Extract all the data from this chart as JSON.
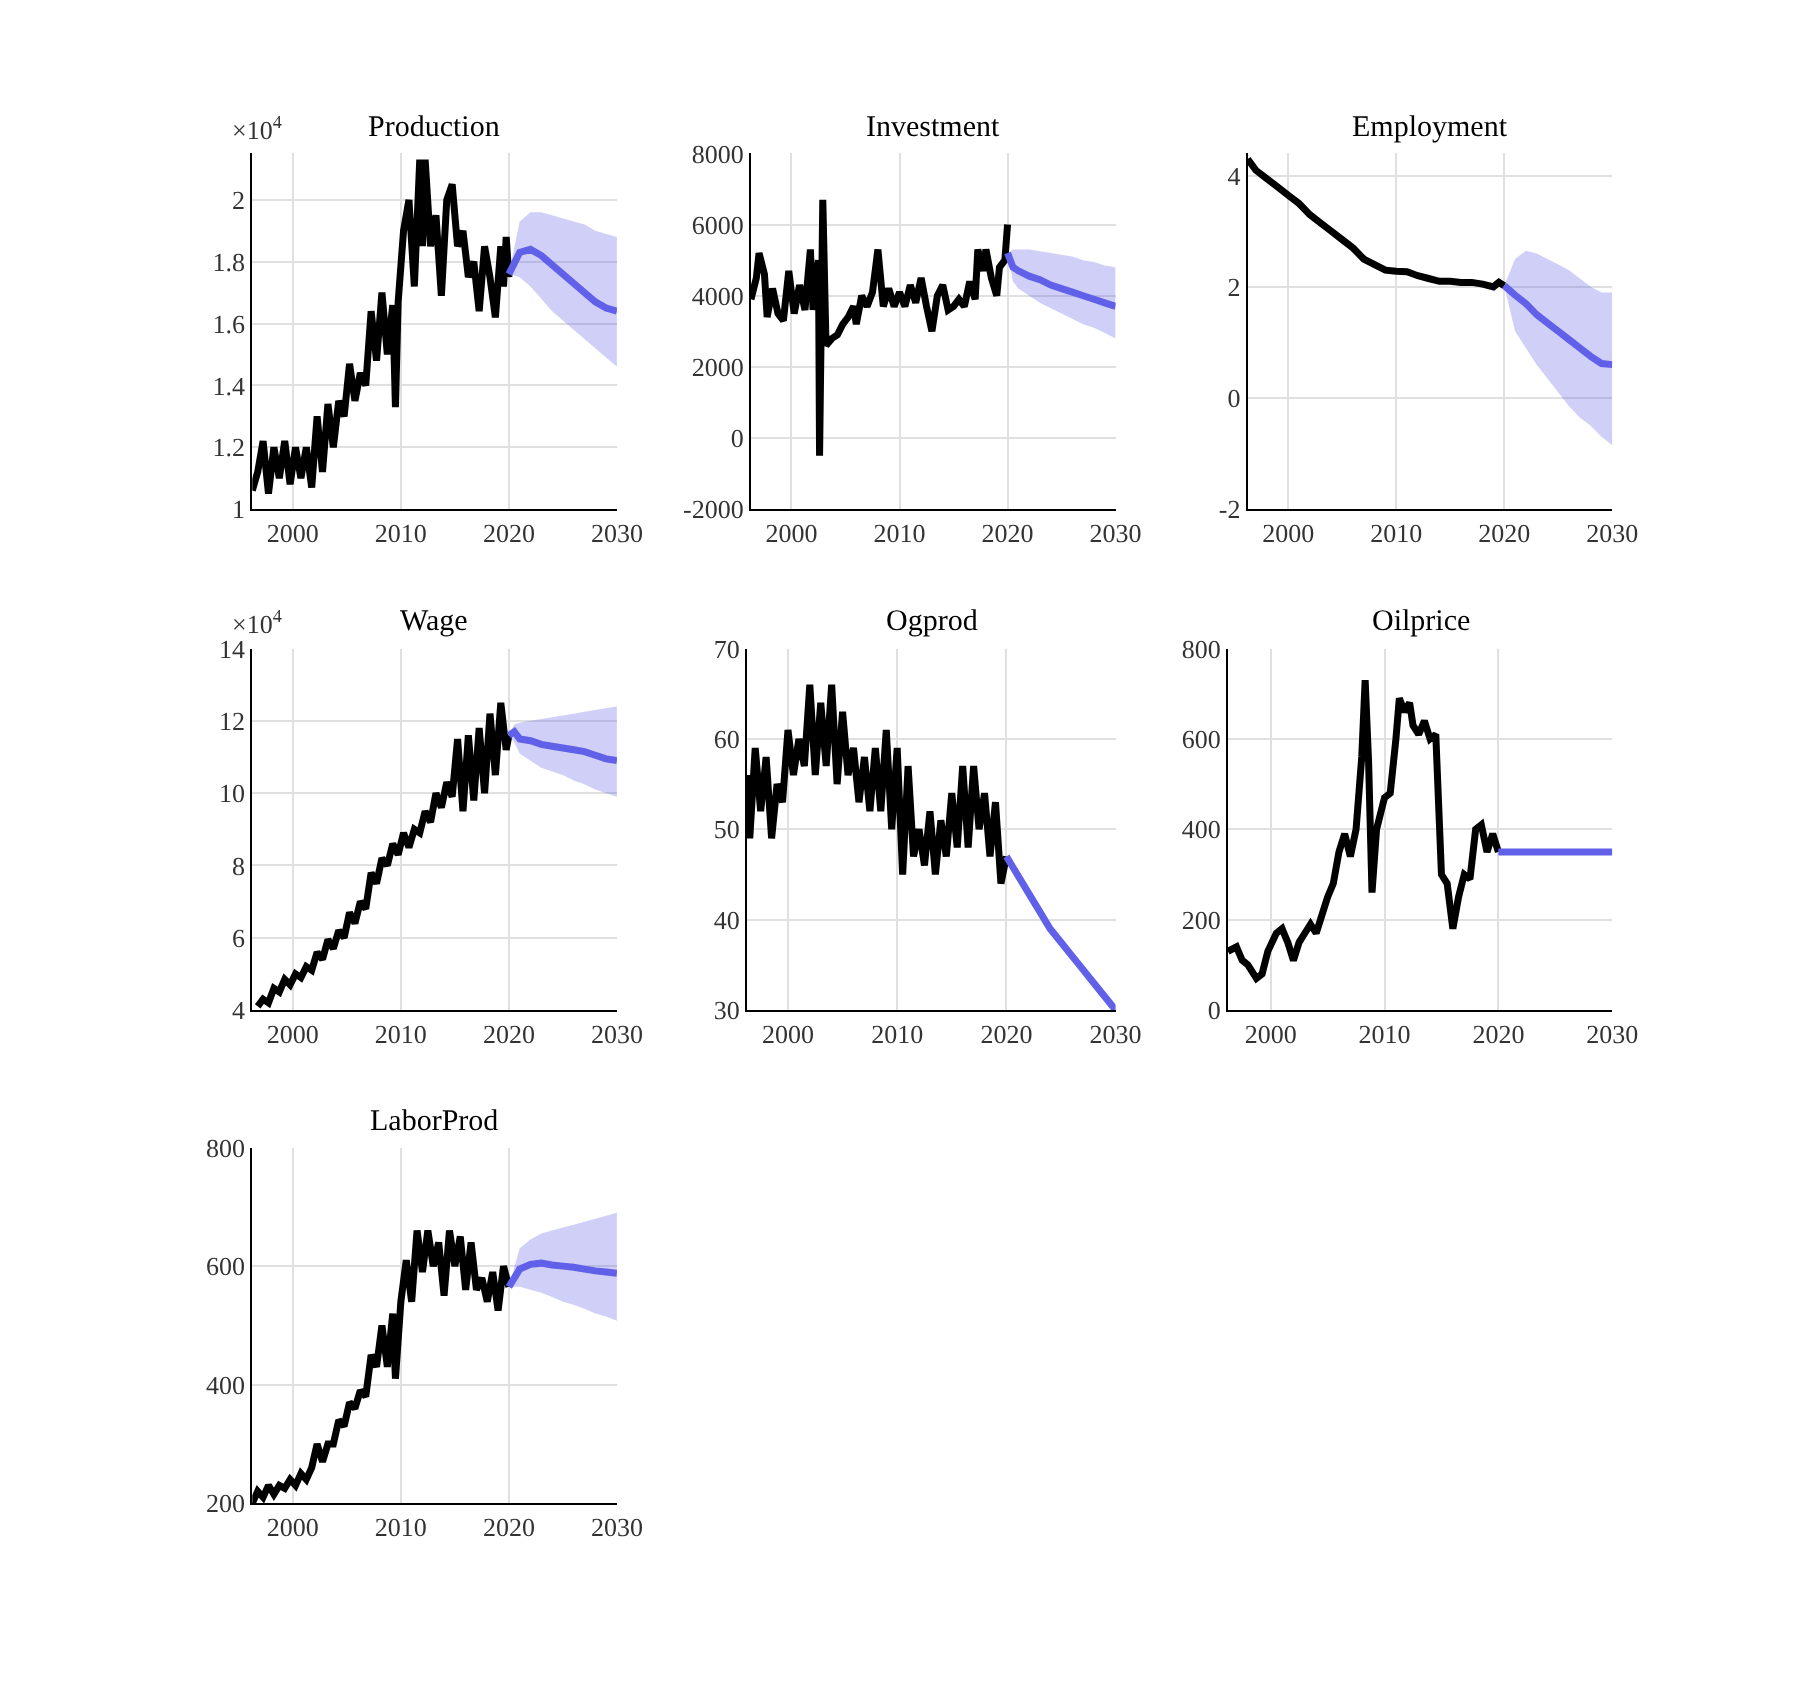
{
  "chart_data": [
    {
      "type": "line",
      "title": "Production",
      "annotations": [
        "×10$^{4}$"
      ],
      "xlim": [
        1996.25,
        2030
      ],
      "xticks": [
        2000,
        2010,
        2020,
        2030
      ],
      "ylim": [
        1,
        2.15
      ],
      "yticks": [
        1,
        1.2,
        1.4,
        1.6,
        1.8,
        2
      ],
      "grid": true,
      "series": [
        {
          "color": "#000000",
          "x": [
            1996.25,
            1996.75,
            1997.25,
            1997.75,
            1998.25,
            1998.75,
            1999.25,
            1999.75,
            2000.25,
            2000.75,
            2001.25,
            2001.75,
            2002.25,
            2002.75,
            2003.25,
            2003.75,
            2004.25,
            2004.75,
            2005.25,
            2005.75,
            2006.25,
            2006.75,
            2007.25,
            2007.75,
            2008.25,
            2008.75,
            2009.25,
            2009.5,
            2009.75,
            2010.25,
            2010.75,
            2011.25,
            2011.75,
            2012.0,
            2012.25,
            2012.75,
            2013.25,
            2013.75,
            2014.25,
            2014.75,
            2015.25,
            2015.75,
            2016.25,
            2016.75,
            2017.25,
            2017.75,
            2018.25,
            2018.75,
            2019.25,
            2019.5,
            2019.75,
            2020.0
          ],
          "values": [
            1.06,
            1.12,
            1.22,
            1.05,
            1.2,
            1.1,
            1.22,
            1.08,
            1.2,
            1.1,
            1.2,
            1.07,
            1.3,
            1.12,
            1.34,
            1.2,
            1.35,
            1.3,
            1.47,
            1.35,
            1.44,
            1.4,
            1.64,
            1.48,
            1.7,
            1.5,
            1.66,
            1.33,
            1.67,
            1.9,
            2.0,
            1.72,
            2.13,
            1.85,
            2.13,
            1.85,
            1.95,
            1.69,
            2.0,
            2.05,
            1.85,
            1.9,
            1.75,
            1.8,
            1.64,
            1.85,
            1.75,
            1.62,
            1.85,
            1.72,
            1.88,
            1.75
          ]
        },
        {
          "color": "#6060e8",
          "x": [
            2020,
            2021,
            2022,
            2023,
            2024,
            2025,
            2026,
            2027,
            2028,
            2029,
            2030
          ],
          "values": [
            1.76,
            1.83,
            1.84,
            1.82,
            1.79,
            1.76,
            1.73,
            1.7,
            1.67,
            1.65,
            1.64
          ],
          "upper": [
            1.76,
            1.93,
            1.96,
            1.96,
            1.95,
            1.94,
            1.93,
            1.92,
            1.9,
            1.89,
            1.88
          ],
          "lower": [
            1.76,
            1.75,
            1.72,
            1.68,
            1.64,
            1.61,
            1.58,
            1.55,
            1.52,
            1.49,
            1.46
          ]
        }
      ]
    },
    {
      "type": "line",
      "title": "Investment",
      "xlim": [
        1996.25,
        2030
      ],
      "xticks": [
        2000,
        2010,
        2020,
        2030
      ],
      "ylim": [
        -2000,
        8000
      ],
      "yticks": [
        -2000,
        0,
        2000,
        4000,
        6000,
        8000
      ],
      "grid": true,
      "series": [
        {
          "color": "#000000",
          "x": [
            1996.25,
            1996.75,
            1997.0,
            1997.5,
            1997.75,
            1998.25,
            1998.75,
            1999.25,
            1999.75,
            2000.25,
            2000.75,
            2001.25,
            2001.75,
            2002.0,
            2002.25,
            2002.5,
            2002.6,
            2002.9,
            2003.2,
            2003.75,
            2004.25,
            2004.75,
            2005.25,
            2005.75,
            2006.0,
            2006.5,
            2007.0,
            2007.5,
            2008.0,
            2008.5,
            2009.0,
            2009.5,
            2010.0,
            2010.5,
            2011.0,
            2011.5,
            2012.0,
            2012.5,
            2013.0,
            2013.5,
            2014.0,
            2014.5,
            2015.0,
            2015.5,
            2016.0,
            2016.5,
            2017.0,
            2017.25,
            2017.75,
            2018.0,
            2018.5,
            2019.0,
            2019.25,
            2019.75,
            2020.0
          ],
          "values": [
            3900,
            4500,
            5200,
            4600,
            3400,
            4200,
            3500,
            3300,
            4700,
            3500,
            4300,
            3600,
            5300,
            3600,
            4500,
            5000,
            -500,
            6700,
            2600,
            2800,
            2900,
            3200,
            3400,
            3700,
            3200,
            4000,
            3700,
            4100,
            5300,
            3700,
            4200,
            3700,
            4100,
            3700,
            4300,
            3800,
            4500,
            3700,
            3000,
            4000,
            4300,
            3600,
            3700,
            3900,
            3700,
            4400,
            3900,
            5300,
            4700,
            5300,
            4500,
            4000,
            4800,
            5000,
            6000
          ]
        },
        {
          "color": "#6060e8",
          "x": [
            2020,
            2020.5,
            2021,
            2022,
            2023,
            2024,
            2025,
            2026,
            2027,
            2028,
            2029,
            2030
          ],
          "values": [
            5200,
            4800,
            4700,
            4550,
            4450,
            4300,
            4200,
            4100,
            4000,
            3900,
            3800,
            3700
          ],
          "upper": [
            5200,
            5300,
            5300,
            5300,
            5250,
            5200,
            5150,
            5100,
            5000,
            4950,
            4850,
            4800
          ],
          "lower": [
            5200,
            4400,
            4200,
            4000,
            3800,
            3650,
            3500,
            3350,
            3200,
            3100,
            2950,
            2800
          ]
        }
      ]
    },
    {
      "type": "line",
      "title": "Employment",
      "xlim": [
        1996.25,
        2030
      ],
      "xticks": [
        2000,
        2010,
        2020,
        2030
      ],
      "ylim": [
        -2,
        4.4
      ],
      "yticks": [
        -2,
        0,
        2,
        4
      ],
      "grid": true,
      "series": [
        {
          "color": "#000000",
          "x": [
            1996.25,
            1997,
            1998,
            1999,
            2000,
            2001,
            2002,
            2003,
            2004,
            2005,
            2006,
            2007,
            2008,
            2009,
            2010,
            2011,
            2012,
            2013,
            2014,
            2015,
            2016,
            2017,
            2018,
            2019,
            2019.5,
            2020
          ],
          "values": [
            4.3,
            4.1,
            3.95,
            3.8,
            3.65,
            3.5,
            3.3,
            3.15,
            3.0,
            2.85,
            2.7,
            2.5,
            2.4,
            2.3,
            2.28,
            2.27,
            2.2,
            2.15,
            2.1,
            2.1,
            2.08,
            2.08,
            2.05,
            2.0,
            2.08,
            2.02
          ]
        },
        {
          "color": "#6060e8",
          "x": [
            2020,
            2021,
            2022,
            2023,
            2024,
            2025,
            2026,
            2027,
            2028,
            2029,
            2030
          ],
          "values": [
            2.02,
            1.85,
            1.7,
            1.5,
            1.35,
            1.2,
            1.05,
            0.9,
            0.75,
            0.62,
            0.6
          ],
          "upper": [
            2.02,
            2.5,
            2.65,
            2.6,
            2.5,
            2.4,
            2.3,
            2.15,
            2.0,
            1.9,
            1.9
          ],
          "lower": [
            2.02,
            1.2,
            0.9,
            0.6,
            0.35,
            0.1,
            -0.15,
            -0.35,
            -0.5,
            -0.7,
            -0.85
          ]
        }
      ]
    },
    {
      "type": "line",
      "title": "Wage",
      "annotations": [
        "×10$^{4}$"
      ],
      "xlim": [
        1996.25,
        2030
      ],
      "xticks": [
        2000,
        2010,
        2020,
        2030
      ],
      "ylim": [
        4,
        14
      ],
      "yticks": [
        4,
        6,
        8,
        10,
        12,
        14
      ],
      "grid": true,
      "series": [
        {
          "color": "#000000",
          "x": [
            1996.75,
            1997.25,
            1997.75,
            1998.25,
            1998.75,
            1999.25,
            1999.75,
            2000.25,
            2000.75,
            2001.25,
            2001.75,
            2002.25,
            2002.75,
            2003.25,
            2003.75,
            2004.25,
            2004.75,
            2005.25,
            2005.75,
            2006.25,
            2006.75,
            2007.25,
            2007.75,
            2008.25,
            2008.75,
            2009.25,
            2009.75,
            2010.25,
            2010.75,
            2011.25,
            2011.75,
            2012.25,
            2012.75,
            2013.25,
            2013.75,
            2014.25,
            2014.75,
            2015.25,
            2015.75,
            2016.25,
            2016.75,
            2017.25,
            2017.75,
            2018.25,
            2018.75,
            2019.25,
            2019.75,
            2020
          ],
          "values": [
            4.1,
            4.3,
            4.2,
            4.6,
            4.5,
            4.85,
            4.7,
            5.0,
            4.9,
            5.2,
            5.1,
            5.6,
            5.4,
            5.95,
            5.7,
            6.2,
            6.0,
            6.7,
            6.4,
            7.0,
            6.8,
            7.8,
            7.5,
            8.2,
            8.0,
            8.6,
            8.3,
            8.9,
            8.5,
            9.0,
            8.9,
            9.5,
            9.2,
            10.0,
            9.6,
            10.3,
            9.9,
            11.5,
            9.5,
            11.6,
            9.8,
            11.8,
            10.0,
            12.2,
            10.5,
            12.5,
            11.2,
            11.6
          ]
        },
        {
          "color": "#6060e8",
          "x": [
            2020,
            2020.5,
            2021,
            2022,
            2023,
            2024,
            2025,
            2026,
            2027,
            2028,
            2029,
            2030
          ],
          "values": [
            11.6,
            11.7,
            11.5,
            11.45,
            11.35,
            11.3,
            11.25,
            11.2,
            11.15,
            11.05,
            10.95,
            10.9
          ],
          "upper": [
            11.6,
            11.9,
            11.95,
            12.0,
            12.05,
            12.1,
            12.15,
            12.2,
            12.25,
            12.3,
            12.35,
            12.4
          ],
          "lower": [
            11.6,
            11.4,
            11.1,
            10.9,
            10.7,
            10.6,
            10.5,
            10.35,
            10.25,
            10.1,
            10.0,
            9.9
          ]
        }
      ]
    },
    {
      "type": "line",
      "title": "Ogprod",
      "xlim": [
        1996.25,
        2030
      ],
      "xticks": [
        2000,
        2010,
        2020,
        2030
      ],
      "ylim": [
        30,
        70
      ],
      "yticks": [
        30,
        40,
        50,
        60,
        70
      ],
      "grid": true,
      "series": [
        {
          "color": "#000000",
          "x": [
            1996.25,
            1996.5,
            1997,
            1997.5,
            1998,
            1998.5,
            1999,
            1999.5,
            2000,
            2000.5,
            2001,
            2001.5,
            2002,
            2002.5,
            2003,
            2003.5,
            2004,
            2004.5,
            2005,
            2005.5,
            2006,
            2006.5,
            2007,
            2007.5,
            2008,
            2008.5,
            2009,
            2009.5,
            2010,
            2010.5,
            2011,
            2011.5,
            2012,
            2012.5,
            2013,
            2013.5,
            2014,
            2014.5,
            2015,
            2015.5,
            2016,
            2016.5,
            2017,
            2017.5,
            2018,
            2018.5,
            2019,
            2019.5,
            2020
          ],
          "values": [
            56,
            49,
            59,
            52,
            58,
            49,
            55,
            53,
            61,
            56,
            60,
            57,
            66,
            56,
            64,
            57,
            66,
            55,
            63,
            56,
            59,
            53,
            58,
            52,
            59,
            52,
            61,
            50,
            59,
            45,
            57,
            47,
            50,
            46,
            52,
            45,
            51,
            47,
            54,
            48,
            57,
            48,
            57,
            50,
            54,
            47,
            53,
            44,
            47
          ]
        },
        {
          "color": "#6060e8",
          "x": [
            2020,
            2021,
            2022,
            2023,
            2024,
            2025,
            2026,
            2027,
            2028,
            2029,
            2030
          ],
          "values": [
            47,
            45,
            43,
            41,
            39,
            37.5,
            36,
            34.5,
            33,
            31.5,
            30
          ]
        }
      ]
    },
    {
      "type": "line",
      "title": "Oilprice",
      "xlim": [
        1996.25,
        2030
      ],
      "xticks": [
        2000,
        2010,
        2020,
        2030
      ],
      "ylim": [
        0,
        800
      ],
      "yticks": [
        0,
        200,
        400,
        600,
        800
      ],
      "grid": true,
      "series": [
        {
          "color": "#000000",
          "x": [
            1996.25,
            1997,
            1997.5,
            1998,
            1998.75,
            1999.25,
            1999.75,
            2000.5,
            2001,
            2001.5,
            2002,
            2002.5,
            2003,
            2003.5,
            2004,
            2004.5,
            2005,
            2005.5,
            2006,
            2006.5,
            2007,
            2007.5,
            2008,
            2008.3,
            2008.6,
            2008.9,
            2009.3,
            2010,
            2010.5,
            2011,
            2011.3,
            2011.75,
            2012.2,
            2012.5,
            2013,
            2013.5,
            2014,
            2014.5,
            2015,
            2015.5,
            2016,
            2016.5,
            2017,
            2017.5,
            2018,
            2018.5,
            2019,
            2019.5,
            2020
          ],
          "values": [
            130,
            140,
            110,
            100,
            70,
            80,
            130,
            170,
            180,
            150,
            110,
            150,
            170,
            190,
            170,
            210,
            250,
            280,
            350,
            390,
            340,
            400,
            560,
            730,
            550,
            260,
            400,
            470,
            480,
            600,
            690,
            660,
            680,
            630,
            610,
            640,
            600,
            610,
            300,
            280,
            180,
            250,
            300,
            290,
            400,
            410,
            350,
            390,
            350
          ]
        },
        {
          "color": "#6060e8",
          "x": [
            2020,
            2025,
            2030
          ],
          "values": [
            350,
            350,
            350
          ]
        }
      ]
    },
    {
      "type": "line",
      "title": "LaborProd",
      "xlim": [
        1996.25,
        2030
      ],
      "xticks": [
        2000,
        2010,
        2020,
        2030
      ],
      "ylim": [
        200,
        800
      ],
      "yticks": [
        200,
        400,
        600,
        800
      ],
      "grid": true,
      "series": [
        {
          "color": "#000000",
          "x": [
            1996.25,
            1996.75,
            1997.25,
            1997.75,
            1998.25,
            1998.75,
            1999.25,
            1999.75,
            2000.25,
            2000.75,
            2001.25,
            2001.75,
            2002.25,
            2002.75,
            2003.25,
            2003.75,
            2004.25,
            2004.75,
            2005.25,
            2005.75,
            2006.25,
            2006.75,
            2007.25,
            2007.75,
            2008.25,
            2008.75,
            2009.25,
            2009.5,
            2010.0,
            2010.5,
            2011.0,
            2011.5,
            2012.0,
            2012.5,
            2013.0,
            2013.5,
            2014.0,
            2014.5,
            2015.0,
            2015.5,
            2016.0,
            2016.5,
            2017.0,
            2017.5,
            2018.0,
            2018.5,
            2019.0,
            2019.5,
            2020
          ],
          "values": [
            200,
            220,
            210,
            230,
            215,
            230,
            225,
            240,
            230,
            250,
            240,
            260,
            300,
            270,
            300,
            300,
            340,
            330,
            370,
            360,
            390,
            380,
            450,
            430,
            500,
            430,
            520,
            410,
            540,
            610,
            540,
            660,
            590,
            660,
            600,
            640,
            550,
            660,
            600,
            650,
            560,
            640,
            560,
            580,
            540,
            590,
            525,
            600,
            565
          ]
        },
        {
          "color": "#6060e8",
          "x": [
            2020,
            2021,
            2022,
            2023,
            2024,
            2025,
            2026,
            2027,
            2028,
            2029,
            2030
          ],
          "values": [
            565,
            595,
            603,
            605,
            602,
            600,
            598,
            595,
            592,
            590,
            588
          ],
          "upper": [
            565,
            630,
            645,
            655,
            660,
            665,
            670,
            675,
            680,
            685,
            690
          ],
          "lower": [
            565,
            565,
            560,
            555,
            548,
            540,
            535,
            528,
            520,
            515,
            508
          ]
        }
      ]
    }
  ]
}
